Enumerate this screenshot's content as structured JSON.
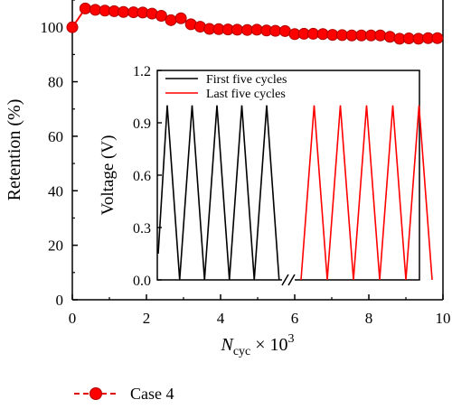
{
  "chart_data": [
    {
      "type": "line",
      "xlabel_main": "N",
      "xlabel_sub": "cyc",
      "xlabel_suffix": " × 10",
      "xlabel_exp": "3",
      "ylabel": "Retention (%)",
      "xlim": [
        0,
        10
      ],
      "ylim": [
        0,
        110
      ],
      "x_ticks": [
        "0",
        "2",
        "4",
        "6",
        "8",
        "10"
      ],
      "y_ticks": [
        "0",
        "20",
        "40",
        "60",
        "80",
        "100"
      ],
      "series": [
        {
          "name": "Case 4",
          "color": "#ff0000",
          "marker": "circle",
          "x": [
            0.0,
            0.35,
            0.62,
            0.88,
            1.13,
            1.38,
            1.65,
            1.9,
            2.15,
            2.4,
            2.66,
            2.93,
            3.2,
            3.45,
            3.7,
            3.95,
            4.2,
            4.45,
            4.72,
            4.98,
            5.24,
            5.48,
            5.74,
            6.0,
            6.25,
            6.5,
            6.76,
            7.02,
            7.28,
            7.54,
            7.8,
            8.06,
            8.31,
            8.57,
            8.83,
            9.08,
            9.34,
            9.6,
            9.85
          ],
          "y": [
            100,
            106.9,
            106.4,
            106.1,
            105.9,
            105.6,
            105.5,
            105.4,
            105,
            104.2,
            102.6,
            103.3,
            101.1,
            100.2,
            99.4,
            99.3,
            99.2,
            99.1,
            99,
            99.1,
            98.8,
            98.7,
            98.6,
            97.5,
            97.6,
            97.6,
            97.5,
            97.2,
            97.1,
            97.0,
            97.0,
            97.0,
            97.0,
            96.5,
            95.8,
            95.9,
            95.8,
            96,
            96
          ]
        }
      ]
    },
    {
      "type": "line",
      "ylabel": "Voltage (V)",
      "ylim": [
        0,
        1.2
      ],
      "y_ticks": [
        "0.0",
        "0.3",
        "0.6",
        "0.9",
        "1.2"
      ],
      "series": [
        {
          "name": "First five cycles",
          "color": "#000000",
          "peaks": 5,
          "vmax": 1.0,
          "vmin": 0.0
        },
        {
          "name": "Last five cycles",
          "color": "#ff0000",
          "peaks": 5,
          "vmax": 1.0,
          "vmin": 0.0
        }
      ]
    }
  ]
}
